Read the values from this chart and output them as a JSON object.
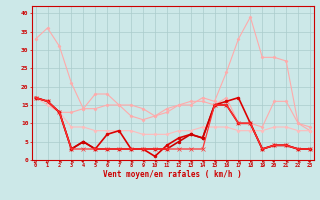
{
  "xlabel": "Vent moyen/en rafales ( km/h )",
  "background_color": "#cce8e8",
  "grid_color": "#aacccc",
  "ylim": [
    0,
    42
  ],
  "xlim": [
    -0.3,
    23.3
  ],
  "y_ticks": [
    0,
    5,
    10,
    15,
    20,
    25,
    30,
    35,
    40
  ],
  "x_ticks": [
    0,
    1,
    2,
    3,
    4,
    5,
    6,
    7,
    8,
    9,
    10,
    11,
    12,
    13,
    14,
    15,
    16,
    17,
    18,
    19,
    20,
    21,
    22,
    23
  ],
  "series": [
    {
      "color": "#ffaaaa",
      "linewidth": 0.8,
      "marker": "D",
      "markersize": 1.5,
      "values": [
        33,
        36,
        31,
        21,
        14,
        18,
        18,
        15,
        12,
        11,
        12,
        13,
        15,
        15,
        17,
        16,
        24,
        33,
        39,
        28,
        28,
        27,
        10,
        8
      ]
    },
    {
      "color": "#ffaaaa",
      "linewidth": 0.8,
      "marker": "D",
      "markersize": 1.5,
      "values": [
        17,
        16,
        13,
        13,
        14,
        14,
        15,
        15,
        15,
        14,
        12,
        14,
        15,
        16,
        16,
        15,
        17,
        10,
        10,
        9,
        16,
        16,
        10,
        9
      ]
    },
    {
      "color": "#ffbbbb",
      "linewidth": 0.8,
      "marker": "D",
      "markersize": 1.5,
      "values": [
        17,
        15,
        13,
        9,
        9,
        8,
        8,
        8,
        8,
        7,
        7,
        7,
        8,
        8,
        9,
        9,
        9,
        8,
        8,
        8,
        9,
        9,
        8,
        8
      ]
    },
    {
      "color": "#dd0000",
      "linewidth": 1.2,
      "marker": "o",
      "markersize": 2.0,
      "values": [
        17,
        16,
        13,
        3,
        5,
        3,
        7,
        8,
        3,
        3,
        1,
        4,
        6,
        7,
        6,
        15,
        16,
        17,
        10,
        3,
        4,
        4,
        3,
        3
      ]
    },
    {
      "color": "#cc0000",
      "linewidth": 1.2,
      "marker": "o",
      "markersize": 2.0,
      "values": [
        17,
        16,
        13,
        3,
        5,
        3,
        3,
        3,
        3,
        3,
        3,
        3,
        5,
        7,
        6,
        15,
        15,
        10,
        10,
        3,
        4,
        4,
        3,
        3
      ]
    },
    {
      "color": "#ff3333",
      "linewidth": 0.9,
      "marker": "x",
      "markersize": 2.5,
      "values": [
        17,
        16,
        13,
        3,
        3,
        3,
        3,
        3,
        3,
        3,
        3,
        3,
        3,
        3,
        3,
        15,
        15,
        10,
        10,
        3,
        4,
        4,
        3,
        3
      ]
    }
  ],
  "wind_dirs": [
    225,
    225,
    270,
    270,
    315,
    270,
    270,
    270,
    270,
    247,
    247,
    247,
    270,
    270,
    270,
    270,
    270,
    270,
    270,
    270,
    315,
    270,
    270,
    315
  ]
}
